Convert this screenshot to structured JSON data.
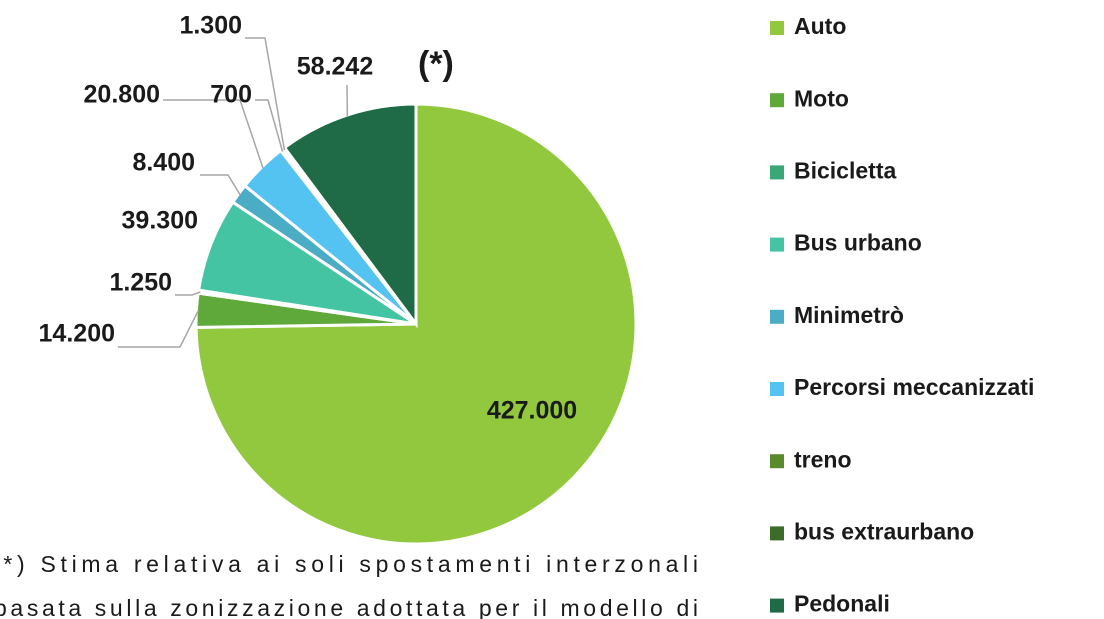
{
  "chart_data": {
    "type": "pie",
    "categories": [
      "Auto",
      "Moto",
      "Bicicletta",
      "Bus urbano",
      "Minimetrò",
      "Percorsi meccanizzati",
      "treno",
      "bus extraurbano",
      "Pedonali"
    ],
    "values": [
      427000,
      14200,
      1250,
      39300,
      8400,
      20800,
      700,
      1300,
      58242
    ],
    "value_labels": [
      "427.000",
      "14.200",
      "1.250",
      "39.300",
      "8.400",
      "20.800",
      "700",
      "1.300",
      "58.242"
    ],
    "colors": [
      "#92c83e",
      "#5fa83a",
      "#3aa876",
      "#45c4a4",
      "#4bacc6",
      "#55c3f2",
      "#5a8a2e",
      "#3d6b2a",
      "#1f6b47"
    ],
    "annotation": "(*)",
    "footnote": [
      "(*) Stima relativa ai soli spostamenti interzonali",
      "basata sulla zonizzazione adottata per il modello di"
    ],
    "legend": "right"
  }
}
